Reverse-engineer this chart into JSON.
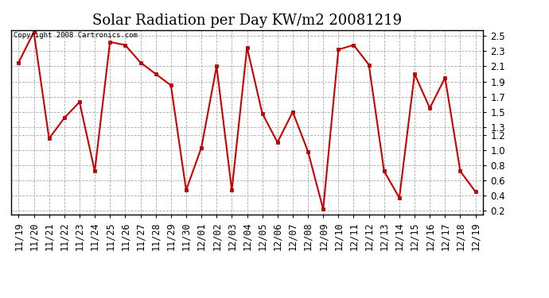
{
  "title": "Solar Radiation per Day KW/m2 20081219",
  "copyright_text": "Copyright 2008 Cartronics.com",
  "labels": [
    "11/19",
    "11/20",
    "11/21",
    "11/22",
    "11/23",
    "11/24",
    "11/25",
    "11/26",
    "11/27",
    "11/28",
    "11/29",
    "11/30",
    "12/01",
    "12/02",
    "12/03",
    "12/04",
    "12/05",
    "12/06",
    "12/07",
    "12/08",
    "12/09",
    "12/10",
    "12/11",
    "12/12",
    "12/13",
    "12/14",
    "12/15",
    "12/16",
    "12/17",
    "12/18",
    "12/19"
  ],
  "values": [
    2.15,
    2.55,
    1.15,
    1.42,
    1.63,
    0.72,
    2.42,
    2.38,
    2.15,
    2.0,
    1.85,
    0.47,
    1.03,
    2.1,
    0.47,
    2.35,
    1.48,
    1.1,
    1.5,
    0.98,
    0.22,
    2.32,
    2.38,
    2.12,
    0.72,
    0.37,
    2.0,
    1.55,
    1.95,
    0.72,
    0.45
  ],
  "line_color": "#cc0000",
  "marker_color": "#cc0000",
  "bg_color": "#ffffff",
  "grid_color": "#aaaaaa",
  "ylim_min": 0.15,
  "ylim_max": 2.58,
  "yticks": [
    0.2,
    0.4,
    0.6,
    0.8,
    1.0,
    1.2,
    1.3,
    1.5,
    1.7,
    1.9,
    2.1,
    2.3,
    2.5
  ],
  "title_fontsize": 13,
  "tick_fontsize": 8.5
}
